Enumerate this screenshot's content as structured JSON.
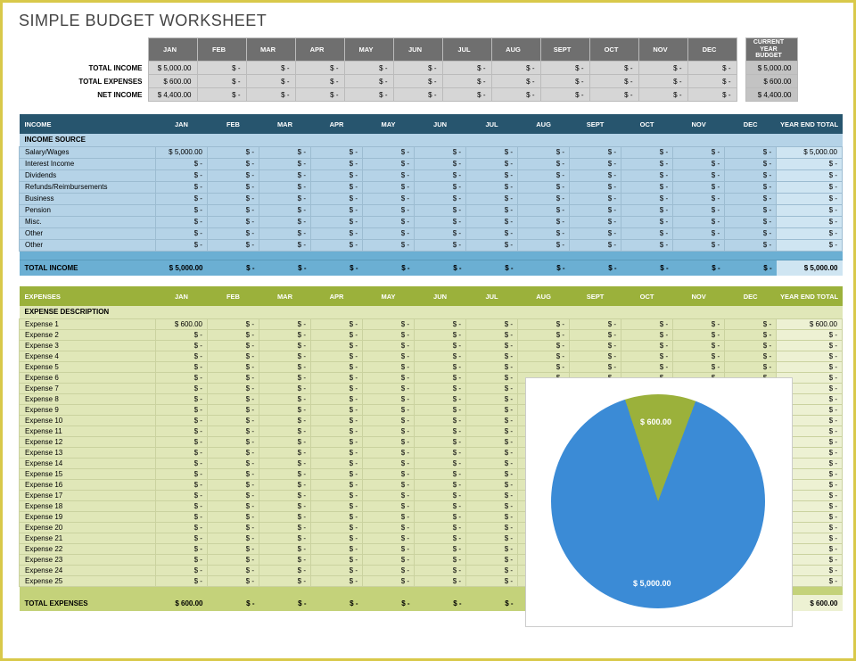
{
  "title": "SIMPLE BUDGET WORKSHEET",
  "months": [
    "JAN",
    "FEB",
    "MAR",
    "APR",
    "MAY",
    "JUN",
    "JUL",
    "AUG",
    "SEPT",
    "OCT",
    "NOV",
    "DEC"
  ],
  "cy_label": "CURRENT YEAR BUDGET",
  "summary": {
    "rows": [
      {
        "label": "TOTAL INCOME",
        "vals": [
          "$ 5,000.00",
          "$ -",
          "$ -",
          "$ -",
          "$ -",
          "$ -",
          "$ -",
          "$ -",
          "$ -",
          "$ -",
          "$ -",
          "$ -"
        ],
        "cy": "$ 5,000.00"
      },
      {
        "label": "TOTAL EXPENSES",
        "vals": [
          "$ 600.00",
          "$ -",
          "$ -",
          "$ -",
          "$ -",
          "$ -",
          "$ -",
          "$ -",
          "$ -",
          "$ -",
          "$ -",
          "$ -"
        ],
        "cy": "$ 600.00"
      },
      {
        "label": "NET INCOME",
        "vals": [
          "$ 4,400.00",
          "$ -",
          "$ -",
          "$ -",
          "$ -",
          "$ -",
          "$ -",
          "$ -",
          "$ -",
          "$ -",
          "$ -",
          "$ -"
        ],
        "cy": "$ 4,400.00"
      }
    ]
  },
  "income": {
    "header_label": "INCOME",
    "year_end_label": "YEAR END TOTAL",
    "sub_label": "INCOME SOURCE",
    "rows": [
      {
        "name": "Salary/Wages",
        "vals": [
          "$ 5,000.00",
          "$ -",
          "$ -",
          "$ -",
          "$ -",
          "$ -",
          "$ -",
          "$ -",
          "$ -",
          "$ -",
          "$ -",
          "$ -"
        ],
        "yt": "$ 5,000.00"
      },
      {
        "name": "Interest Income",
        "vals": [
          "$ -",
          "$ -",
          "$ -",
          "$ -",
          "$ -",
          "$ -",
          "$ -",
          "$ -",
          "$ -",
          "$ -",
          "$ -",
          "$ -"
        ],
        "yt": "$ -"
      },
      {
        "name": "Dividends",
        "vals": [
          "$ -",
          "$ -",
          "$ -",
          "$ -",
          "$ -",
          "$ -",
          "$ -",
          "$ -",
          "$ -",
          "$ -",
          "$ -",
          "$ -"
        ],
        "yt": "$ -"
      },
      {
        "name": "Refunds/Reimbursements",
        "vals": [
          "$ -",
          "$ -",
          "$ -",
          "$ -",
          "$ -",
          "$ -",
          "$ -",
          "$ -",
          "$ -",
          "$ -",
          "$ -",
          "$ -"
        ],
        "yt": "$ -"
      },
      {
        "name": "Business",
        "vals": [
          "$ -",
          "$ -",
          "$ -",
          "$ -",
          "$ -",
          "$ -",
          "$ -",
          "$ -",
          "$ -",
          "$ -",
          "$ -",
          "$ -"
        ],
        "yt": "$ -"
      },
      {
        "name": "Pension",
        "vals": [
          "$ -",
          "$ -",
          "$ -",
          "$ -",
          "$ -",
          "$ -",
          "$ -",
          "$ -",
          "$ -",
          "$ -",
          "$ -",
          "$ -"
        ],
        "yt": "$ -"
      },
      {
        "name": "Misc.",
        "vals": [
          "$ -",
          "$ -",
          "$ -",
          "$ -",
          "$ -",
          "$ -",
          "$ -",
          "$ -",
          "$ -",
          "$ -",
          "$ -",
          "$ -"
        ],
        "yt": "$ -"
      },
      {
        "name": "Other",
        "vals": [
          "$ -",
          "$ -",
          "$ -",
          "$ -",
          "$ -",
          "$ -",
          "$ -",
          "$ -",
          "$ -",
          "$ -",
          "$ -",
          "$ -"
        ],
        "yt": "$ -"
      },
      {
        "name": "Other",
        "vals": [
          "$ -",
          "$ -",
          "$ -",
          "$ -",
          "$ -",
          "$ -",
          "$ -",
          "$ -",
          "$ -",
          "$ -",
          "$ -",
          "$ -"
        ],
        "yt": "$ -"
      }
    ],
    "total": {
      "name": "TOTAL INCOME",
      "vals": [
        "$ 5,000.00",
        "$ -",
        "$ -",
        "$ -",
        "$ -",
        "$ -",
        "$ -",
        "$ -",
        "$ -",
        "$ -",
        "$ -",
        "$ -"
      ],
      "yt": "$ 5,000.00"
    }
  },
  "expenses": {
    "header_label": "EXPENSES",
    "year_end_label": "YEAR END TOTAL",
    "sub_label": "EXPENSE DESCRIPTION",
    "rows": [
      {
        "name": "Expense 1",
        "vals": [
          "$ 600.00",
          "$ -",
          "$ -",
          "$ -",
          "$ -",
          "$ -",
          "$ -",
          "$ -",
          "$ -",
          "$ -",
          "$ -",
          "$ -"
        ],
        "yt": "$ 600.00"
      },
      {
        "name": "Expense 2",
        "vals": [
          "$ -",
          "$ -",
          "$ -",
          "$ -",
          "$ -",
          "$ -",
          "$ -",
          "$ -",
          "$ -",
          "$ -",
          "$ -",
          "$ -"
        ],
        "yt": "$ -"
      },
      {
        "name": "Expense 3",
        "vals": [
          "$ -",
          "$ -",
          "$ -",
          "$ -",
          "$ -",
          "$ -",
          "$ -",
          "$ -",
          "$ -",
          "$ -",
          "$ -",
          "$ -"
        ],
        "yt": "$ -"
      },
      {
        "name": "Expense 4",
        "vals": [
          "$ -",
          "$ -",
          "$ -",
          "$ -",
          "$ -",
          "$ -",
          "$ -",
          "$ -",
          "$ -",
          "$ -",
          "$ -",
          "$ -"
        ],
        "yt": "$ -"
      },
      {
        "name": "Expense 5",
        "vals": [
          "$ -",
          "$ -",
          "$ -",
          "$ -",
          "$ -",
          "$ -",
          "$ -",
          "$ -",
          "$ -",
          "$ -",
          "$ -",
          "$ -"
        ],
        "yt": "$ -"
      },
      {
        "name": "Expense 6",
        "vals": [
          "$ -",
          "$ -",
          "$ -",
          "$ -",
          "$ -",
          "$ -",
          "$ -",
          "$ -",
          "$ -",
          "$ -",
          "$ -",
          "$ -"
        ],
        "yt": "$ -"
      },
      {
        "name": "Expense 7",
        "vals": [
          "$ -",
          "$ -",
          "$ -",
          "$ -",
          "$ -",
          "$ -",
          "$ -",
          "$ -",
          "$ -",
          "$ -",
          "$ -",
          "$ -"
        ],
        "yt": "$ -"
      },
      {
        "name": "Expense 8",
        "vals": [
          "$ -",
          "$ -",
          "$ -",
          "$ -",
          "$ -",
          "$ -",
          "$ -",
          "$ -",
          "$ -",
          "$ -",
          "$ -",
          "$ -"
        ],
        "yt": "$ -"
      },
      {
        "name": "Expense 9",
        "vals": [
          "$ -",
          "$ -",
          "$ -",
          "$ -",
          "$ -",
          "$ -",
          "$ -",
          "$ -",
          "$ -",
          "$ -",
          "$ -",
          "$ -"
        ],
        "yt": "$ -"
      },
      {
        "name": "Expense 10",
        "vals": [
          "$ -",
          "$ -",
          "$ -",
          "$ -",
          "$ -",
          "$ -",
          "$ -",
          "$ -",
          "$ -",
          "$ -",
          "$ -",
          "$ -"
        ],
        "yt": "$ -"
      },
      {
        "name": "Expense 11",
        "vals": [
          "$ -",
          "$ -",
          "$ -",
          "$ -",
          "$ -",
          "$ -",
          "$ -",
          "$ -",
          "$ -",
          "$ -",
          "$ -",
          "$ -"
        ],
        "yt": "$ -"
      },
      {
        "name": "Expense 12",
        "vals": [
          "$ -",
          "$ -",
          "$ -",
          "$ -",
          "$ -",
          "$ -",
          "$ -",
          "$ -",
          "$ -",
          "$ -",
          "$ -",
          "$ -"
        ],
        "yt": "$ -"
      },
      {
        "name": "Expense 13",
        "vals": [
          "$ -",
          "$ -",
          "$ -",
          "$ -",
          "$ -",
          "$ -",
          "$ -",
          "$ -",
          "$ -",
          "$ -",
          "$ -",
          "$ -"
        ],
        "yt": "$ -"
      },
      {
        "name": "Expense 14",
        "vals": [
          "$ -",
          "$ -",
          "$ -",
          "$ -",
          "$ -",
          "$ -",
          "$ -",
          "$ -",
          "$ -",
          "$ -",
          "$ -",
          "$ -"
        ],
        "yt": "$ -"
      },
      {
        "name": "Expense 15",
        "vals": [
          "$ -",
          "$ -",
          "$ -",
          "$ -",
          "$ -",
          "$ -",
          "$ -",
          "$ -",
          "$ -",
          "$ -",
          "$ -",
          "$ -"
        ],
        "yt": "$ -"
      },
      {
        "name": "Expense 16",
        "vals": [
          "$ -",
          "$ -",
          "$ -",
          "$ -",
          "$ -",
          "$ -",
          "$ -",
          "$ -",
          "$ -",
          "$ -",
          "$ -",
          "$ -"
        ],
        "yt": "$ -"
      },
      {
        "name": "Expense 17",
        "vals": [
          "$ -",
          "$ -",
          "$ -",
          "$ -",
          "$ -",
          "$ -",
          "$ -",
          "$ -",
          "$ -",
          "$ -",
          "$ -",
          "$ -"
        ],
        "yt": "$ -"
      },
      {
        "name": "Expense 18",
        "vals": [
          "$ -",
          "$ -",
          "$ -",
          "$ -",
          "$ -",
          "$ -",
          "$ -",
          "$ -",
          "$ -",
          "$ -",
          "$ -",
          "$ -"
        ],
        "yt": "$ -"
      },
      {
        "name": "Expense 19",
        "vals": [
          "$ -",
          "$ -",
          "$ -",
          "$ -",
          "$ -",
          "$ -",
          "$ -",
          "$ -",
          "$ -",
          "$ -",
          "$ -",
          "$ -"
        ],
        "yt": "$ -"
      },
      {
        "name": "Expense 20",
        "vals": [
          "$ -",
          "$ -",
          "$ -",
          "$ -",
          "$ -",
          "$ -",
          "$ -",
          "$ -",
          "$ -",
          "$ -",
          "$ -",
          "$ -"
        ],
        "yt": "$ -"
      },
      {
        "name": "Expense 21",
        "vals": [
          "$ -",
          "$ -",
          "$ -",
          "$ -",
          "$ -",
          "$ -",
          "$ -",
          "$ -",
          "$ -",
          "$ -",
          "$ -",
          "$ -"
        ],
        "yt": "$ -"
      },
      {
        "name": "Expense 22",
        "vals": [
          "$ -",
          "$ -",
          "$ -",
          "$ -",
          "$ -",
          "$ -",
          "$ -",
          "$ -",
          "$ -",
          "$ -",
          "$ -",
          "$ -"
        ],
        "yt": "$ -"
      },
      {
        "name": "Expense 23",
        "vals": [
          "$ -",
          "$ -",
          "$ -",
          "$ -",
          "$ -",
          "$ -",
          "$ -",
          "$ -",
          "$ -",
          "$ -",
          "$ -",
          "$ -"
        ],
        "yt": "$ -"
      },
      {
        "name": "Expense 24",
        "vals": [
          "$ -",
          "$ -",
          "$ -",
          "$ -",
          "$ -",
          "$ -",
          "$ -",
          "$ -",
          "$ -",
          "$ -",
          "$ -",
          "$ -"
        ],
        "yt": "$ -"
      },
      {
        "name": "Expense 25",
        "vals": [
          "$ -",
          "$ -",
          "$ -",
          "$ -",
          "$ -",
          "$ -",
          "$ -",
          "$ -",
          "$ -",
          "$ -",
          "$ -",
          "$ -"
        ],
        "yt": "$ -"
      }
    ],
    "total": {
      "name": "TOTAL EXPENSES",
      "vals": [
        "$ 600.00",
        "$ -",
        "$ -",
        "$ -",
        "$ -",
        "$ -",
        "$ -",
        "$ -",
        "$ -",
        "$ -",
        "$ -",
        "$ -"
      ],
      "yt": "$ 600.00"
    }
  },
  "pie": {
    "type": "pie",
    "slices": [
      {
        "label": "$ 5,000.00",
        "value": 5000,
        "color": "#3b8bd6"
      },
      {
        "label": "$ 600.00",
        "value": 600,
        "color": "#9bb13b"
      }
    ],
    "background_color": "#ffffff",
    "border_color": "#cccccc",
    "label_color": "#ffffff",
    "label_fontsize": 9,
    "angle_deg": 38.57
  }
}
